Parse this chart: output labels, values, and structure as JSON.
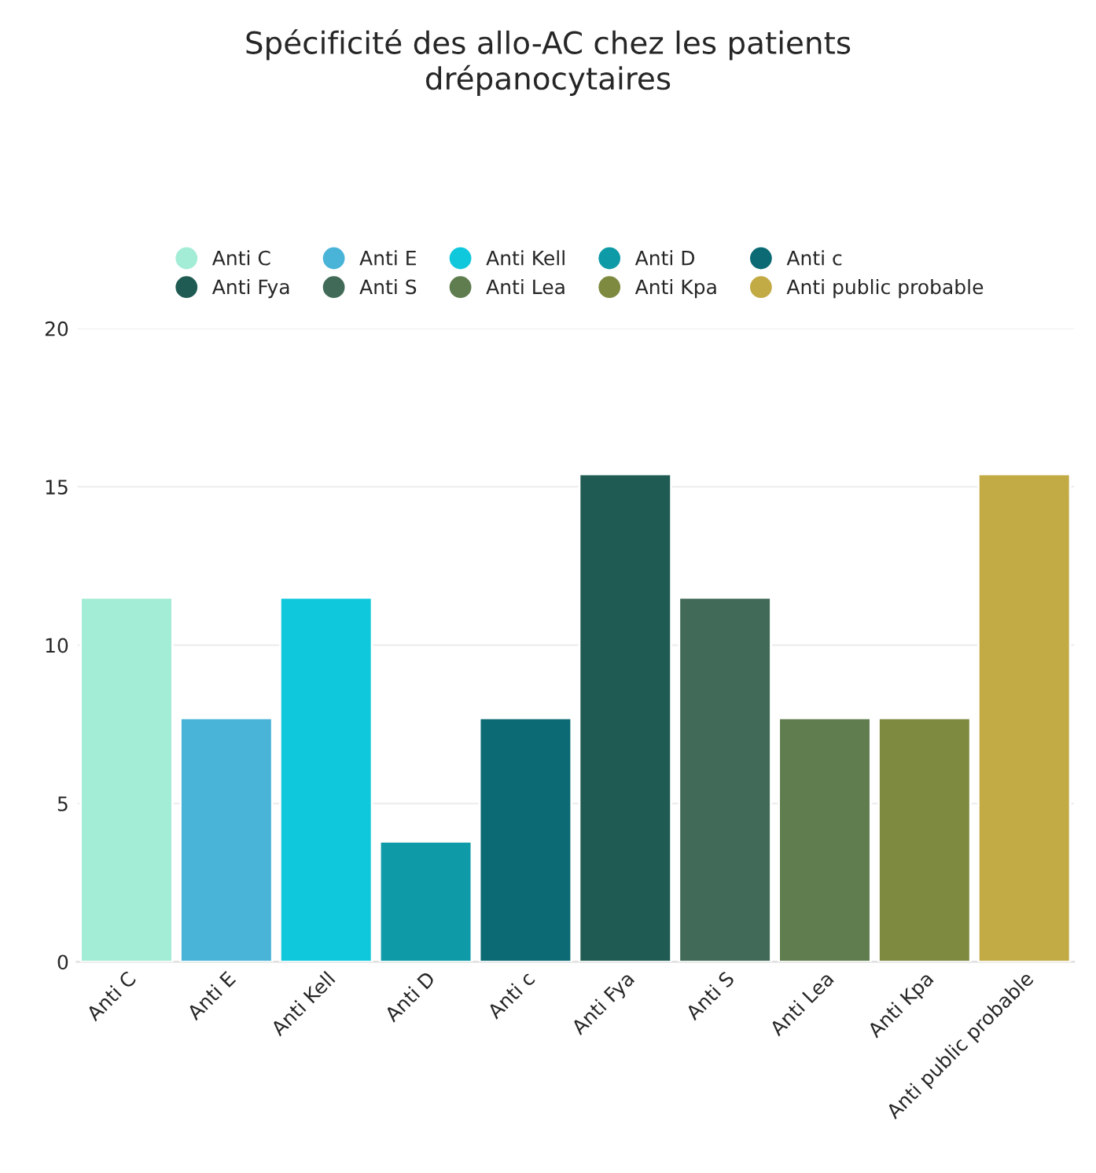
{
  "chart_data": {
    "type": "bar",
    "title": "Spécificité des allo-AC chez les patients\ndrépanocytaires",
    "categories": [
      "Anti C",
      "Anti E",
      "Anti Kell",
      "Anti D",
      "Anti c",
      "Anti Fya",
      "Anti S",
      "Anti Lea",
      "Anti Kpa",
      "Anti public probable"
    ],
    "series": [
      {
        "name": "Anti C",
        "color": "#a3ecd6",
        "values": [
          11.5,
          null,
          null,
          null,
          null,
          null,
          null,
          null,
          null,
          null
        ]
      },
      {
        "name": "Anti E",
        "color": "#49b3d8",
        "values": [
          null,
          7.7,
          null,
          null,
          null,
          null,
          null,
          null,
          null,
          null
        ]
      },
      {
        "name": "Anti Kell",
        "color": "#10c8dc",
        "values": [
          null,
          null,
          11.5,
          null,
          null,
          null,
          null,
          null,
          null,
          null
        ]
      },
      {
        "name": "Anti D",
        "color": "#0e9aa7",
        "values": [
          null,
          null,
          null,
          3.8,
          null,
          null,
          null,
          null,
          null,
          null
        ]
      },
      {
        "name": "Anti c",
        "color": "#0b6a74",
        "values": [
          null,
          null,
          null,
          null,
          7.7,
          null,
          null,
          null,
          null,
          null
        ]
      },
      {
        "name": "Anti Fya",
        "color": "#1f5b52",
        "values": [
          null,
          null,
          null,
          null,
          null,
          15.4,
          null,
          null,
          null,
          null
        ]
      },
      {
        "name": "Anti S",
        "color": "#416b58",
        "values": [
          null,
          null,
          null,
          null,
          null,
          null,
          11.5,
          null,
          null,
          null
        ]
      },
      {
        "name": "Anti Lea",
        "color": "#5f7d4f",
        "values": [
          null,
          null,
          null,
          null,
          null,
          null,
          null,
          7.7,
          null,
          null
        ]
      },
      {
        "name": "Anti Kpa",
        "color": "#7d8a3f",
        "values": [
          null,
          null,
          null,
          null,
          null,
          null,
          null,
          null,
          7.7,
          null
        ]
      },
      {
        "name": "Anti public probable",
        "color": "#c2aa45",
        "values": [
          null,
          null,
          null,
          null,
          null,
          null,
          null,
          null,
          null,
          15.4
        ]
      }
    ],
    "ylim": [
      0,
      20
    ],
    "yticks": [
      0,
      5,
      10,
      15,
      20
    ],
    "grid": "y",
    "legend": "top"
  }
}
